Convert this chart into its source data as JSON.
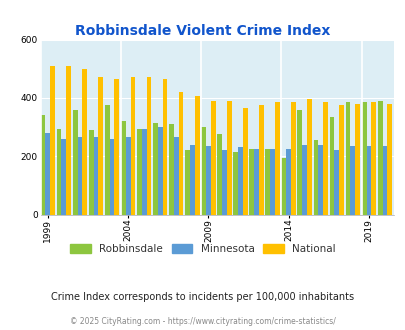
{
  "title": "Robbinsdale Violent Crime Index",
  "years": [
    1999,
    2000,
    2001,
    2002,
    2003,
    2004,
    2005,
    2006,
    2007,
    2008,
    2009,
    2010,
    2011,
    2012,
    2013,
    2014,
    2015,
    2016,
    2017,
    2018,
    2019,
    2020
  ],
  "robbinsdale": [
    340,
    295,
    360,
    290,
    375,
    320,
    295,
    315,
    310,
    220,
    300,
    275,
    215,
    225,
    225,
    195,
    360,
    255,
    335,
    385,
    385,
    390
  ],
  "minnesota": [
    280,
    260,
    265,
    265,
    260,
    265,
    295,
    300,
    265,
    240,
    235,
    220,
    230,
    225,
    225,
    225,
    240,
    240,
    220,
    235,
    235,
    235
  ],
  "national": [
    510,
    510,
    500,
    470,
    465,
    470,
    470,
    465,
    420,
    405,
    390,
    390,
    365,
    375,
    385,
    385,
    395,
    385,
    375,
    380,
    385,
    380
  ],
  "colors": {
    "robbinsdale": "#8dc63f",
    "minnesota": "#5b9bd5",
    "national": "#ffc000"
  },
  "ylim": [
    0,
    600
  ],
  "yticks": [
    0,
    200,
    400,
    600
  ],
  "xtick_years": [
    1999,
    2004,
    2009,
    2014,
    2019
  ],
  "background_color": "#ddeef5",
  "subtitle": "Crime Index corresponds to incidents per 100,000 inhabitants",
  "footer": "© 2025 CityRating.com - https://www.cityrating.com/crime-statistics/",
  "legend_labels": [
    "Robbinsdale",
    "Minnesota",
    "National"
  ],
  "title_color": "#1155cc",
  "subtitle_color": "#222222",
  "footer_color": "#888888"
}
